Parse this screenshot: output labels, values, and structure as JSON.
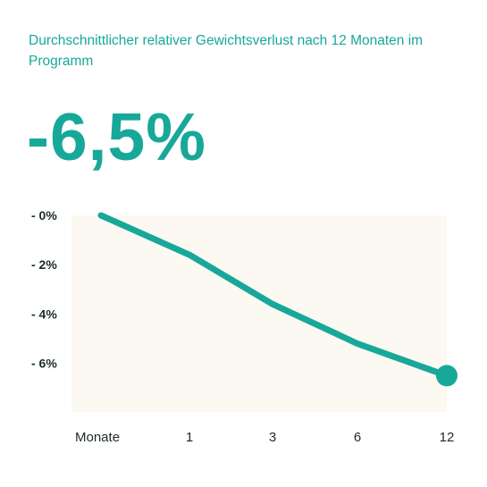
{
  "subtitle": "Durchschnittlicher relativer Gewichtsverlust nach 12 Monaten im Programm",
  "headline_value": "-6,5%",
  "colors": {
    "accent": "#17a89a",
    "area_fill": "#fcf9f2",
    "text": "#1d2b2a"
  },
  "chart_data": {
    "type": "area",
    "title": "",
    "xlabel": "",
    "ylabel": "",
    "categories": [
      "Monate",
      "1",
      "3",
      "6",
      "12"
    ],
    "series": [
      {
        "values": [
          0,
          -1.6,
          -3.6,
          -5.2,
          -6.5
        ]
      }
    ],
    "y_ticks": [
      {
        "value": 0,
        "label": "- 0%"
      },
      {
        "value": -2,
        "label": "- 2%"
      },
      {
        "value": -4,
        "label": "- 4%"
      },
      {
        "value": -6,
        "label": "- 6%"
      }
    ],
    "ylim": [
      -7.8,
      0
    ],
    "end_marker": true,
    "grid": false,
    "legend": "none"
  }
}
